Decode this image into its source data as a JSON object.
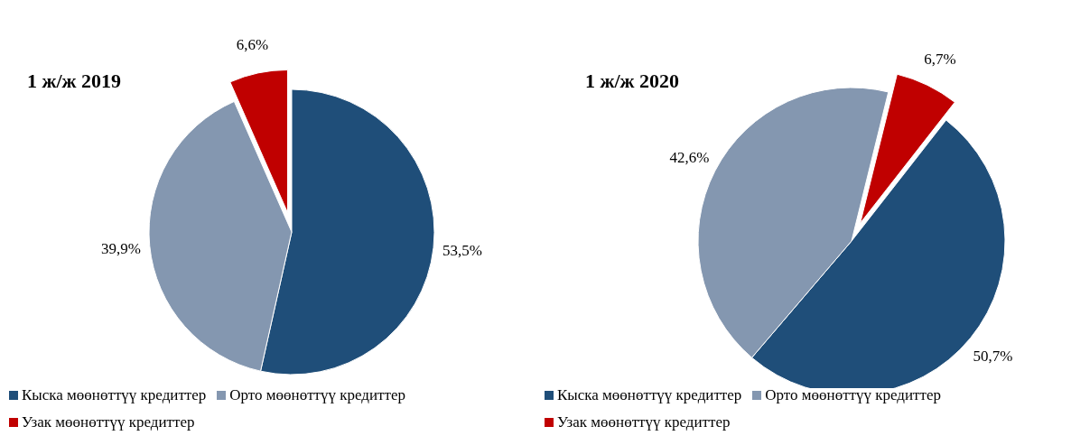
{
  "chart_data": [
    {
      "type": "pie",
      "title": "1 ж/ж 2019",
      "categories": [
        "Кыска мөөнөттүү кредиттер",
        "Орто мөөнөттүү кредиттер",
        "Узак мөөнөттүү кредиттер"
      ],
      "values": [
        53.5,
        39.9,
        6.6
      ],
      "colors": [
        "#1f4e79",
        "#8497b0",
        "#c00000"
      ],
      "value_labels": [
        "53,5%",
        "39,9%",
        "6,6%"
      ],
      "legend": "bottom"
    },
    {
      "type": "pie",
      "title": "1 ж/ж 2020",
      "categories": [
        "Кыска мөөнөттүү кредиттер",
        "Орто мөөнөттүү кредиттер",
        "Узак мөөнөттүү кредиттер"
      ],
      "values": [
        50.7,
        42.6,
        6.7
      ],
      "colors": [
        "#1f4e79",
        "#8497b0",
        "#c00000"
      ],
      "value_labels": [
        "50,7%",
        "42,6%",
        "6,7%"
      ],
      "legend": "bottom"
    }
  ]
}
